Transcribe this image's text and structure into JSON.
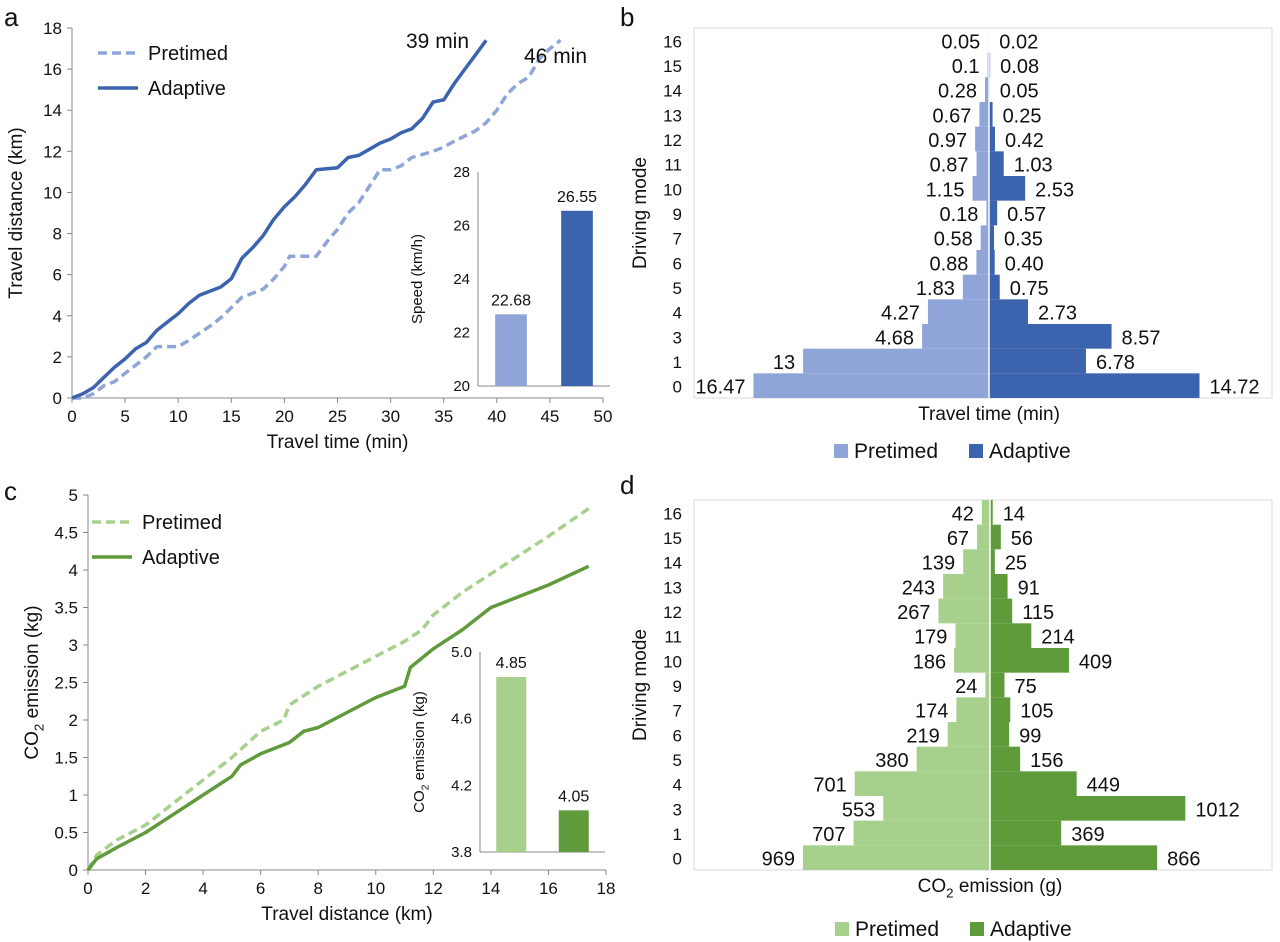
{
  "panel_letters": {
    "a": "a",
    "b": "b",
    "c": "c",
    "d": "d"
  },
  "colors": {
    "pretimed_blue": "#8FA5D8",
    "adaptive_blue": "#3B63AE",
    "pretimed_green": "#A8D08D",
    "adaptive_green": "#5F9B3A",
    "axis": "#888888",
    "grid": "#d9d9d9"
  },
  "chart_data": [
    {
      "id": "a",
      "type": "line",
      "xlabel": "Travel time (min)",
      "ylabel": "Travel distance (km)",
      "xlim": [
        0,
        50
      ],
      "ylim": [
        0,
        18
      ],
      "xticks": [
        0,
        5,
        10,
        15,
        20,
        25,
        30,
        35,
        40,
        45,
        50
      ],
      "yticks": [
        0,
        2,
        4,
        6,
        8,
        10,
        12,
        14,
        16,
        18
      ],
      "legend": [
        "Pretimed",
        "Adaptive"
      ],
      "legend_position": "top-left",
      "series": [
        {
          "name": "Pretimed",
          "style": "dashed",
          "points": [
            [
              0,
              0
            ],
            [
              1,
              0
            ],
            [
              2,
              0.2
            ],
            [
              3,
              0.6
            ],
            [
              4,
              0.8
            ],
            [
              5,
              1.2
            ],
            [
              6,
              1.6
            ],
            [
              7,
              2.0
            ],
            [
              8,
              2.5
            ],
            [
              10,
              2.5
            ],
            [
              11,
              2.8
            ],
            [
              13,
              3.5
            ],
            [
              14,
              3.9
            ],
            [
              15,
              4.4
            ],
            [
              16,
              4.9
            ],
            [
              17,
              5.1
            ],
            [
              18,
              5.3
            ],
            [
              19,
              5.8
            ],
            [
              20,
              6.4
            ],
            [
              20.5,
              6.9
            ],
            [
              23,
              6.9
            ],
            [
              24,
              7.6
            ],
            [
              25,
              8.2
            ],
            [
              26,
              9.0
            ],
            [
              27,
              9.5
            ],
            [
              28,
              10.3
            ],
            [
              29,
              11.1
            ],
            [
              30,
              11.1
            ],
            [
              31,
              11.3
            ],
            [
              32,
              11.7
            ],
            [
              34,
              12.0
            ],
            [
              35,
              12.2
            ],
            [
              36,
              12.5
            ],
            [
              38,
              13.0
            ],
            [
              39,
              13.4
            ],
            [
              40,
              14.0
            ],
            [
              41,
              14.8
            ],
            [
              42,
              15.3
            ],
            [
              43,
              15.6
            ],
            [
              44,
              16.5
            ],
            [
              45,
              17.0
            ],
            [
              46,
              17.4
            ]
          ]
        },
        {
          "name": "Adaptive",
          "style": "solid",
          "points": [
            [
              0,
              0
            ],
            [
              1,
              0.2
            ],
            [
              2,
              0.5
            ],
            [
              3,
              1.0
            ],
            [
              4,
              1.5
            ],
            [
              5,
              1.9
            ],
            [
              6,
              2.4
            ],
            [
              7,
              2.7
            ],
            [
              8,
              3.3
            ],
            [
              9,
              3.7
            ],
            [
              10,
              4.1
            ],
            [
              11,
              4.6
            ],
            [
              12,
              5.0
            ],
            [
              13,
              5.2
            ],
            [
              14,
              5.4
            ],
            [
              15,
              5.8
            ],
            [
              16,
              6.8
            ],
            [
              17,
              7.3
            ],
            [
              18,
              7.9
            ],
            [
              19,
              8.7
            ],
            [
              20,
              9.3
            ],
            [
              21,
              9.8
            ],
            [
              22,
              10.4
            ],
            [
              23,
              11.1
            ],
            [
              25,
              11.2
            ],
            [
              26,
              11.7
            ],
            [
              27,
              11.8
            ],
            [
              28,
              12.1
            ],
            [
              29,
              12.4
            ],
            [
              30,
              12.6
            ],
            [
              31,
              12.9
            ],
            [
              32,
              13.1
            ],
            [
              33,
              13.6
            ],
            [
              34,
              14.4
            ],
            [
              35,
              14.5
            ],
            [
              36,
              15.3
            ],
            [
              37,
              16.0
            ],
            [
              38,
              16.7
            ],
            [
              39,
              17.4
            ]
          ]
        }
      ],
      "annotations": [
        "39 min",
        "46 min"
      ],
      "inset": {
        "type": "bar",
        "ylabel": "Speed (km/h)",
        "ylim": [
          20,
          28
        ],
        "yticks": [
          20,
          22,
          24,
          26,
          28
        ],
        "categories": [
          "Pretimed",
          "Adaptive"
        ],
        "values": [
          22.68,
          26.55
        ],
        "labels": [
          "22.68",
          "26.55"
        ]
      }
    },
    {
      "id": "b",
      "type": "bar",
      "orientation": "horizontal-diverging",
      "xlabel": "Travel time (min)",
      "ylabel": "Driving mode",
      "legend": [
        "Pretimed",
        "Adaptive"
      ],
      "legend_position": "bottom",
      "categories": [
        "16",
        "15",
        "14",
        "13",
        "12",
        "11",
        "10",
        "9",
        "7",
        "6",
        "5",
        "4",
        "3",
        "1",
        "0"
      ],
      "series": [
        {
          "name": "Pretimed",
          "values": [
            0.05,
            0.1,
            0.28,
            0.67,
            0.97,
            0.87,
            1.15,
            0.18,
            0.58,
            0.88,
            1.83,
            4.27,
            4.68,
            13,
            16.47
          ],
          "labels": [
            "0.05",
            "0.1",
            "0.28",
            "0.67",
            "0.97",
            "0.87",
            "1.15",
            "0.18",
            "0.58",
            "0.88",
            "1.83",
            "4.27",
            "4.68",
            "13",
            "16.47"
          ]
        },
        {
          "name": "Adaptive",
          "values": [
            0.02,
            0.08,
            0.05,
            0.25,
            0.42,
            1.03,
            2.53,
            0.57,
            0.35,
            0.4,
            0.75,
            2.73,
            8.57,
            6.78,
            14.72
          ],
          "labels": [
            "0.02",
            "0.08",
            "0.05",
            "0.25",
            "0.42",
            "1.03",
            "2.53",
            "0.57",
            "0.35",
            "0.40",
            "0.75",
            "2.73",
            "8.57",
            "6.78",
            "14.72"
          ]
        }
      ]
    },
    {
      "id": "c",
      "type": "line",
      "xlabel": "Travel distance (km)",
      "ylabel": "CO",
      "ylabel_sub": "2",
      "ylabel_suffix": " emission (kg)",
      "xlim": [
        0,
        18
      ],
      "ylim": [
        0,
        5
      ],
      "xticks": [
        0,
        2,
        4,
        6,
        8,
        10,
        12,
        14,
        16,
        18
      ],
      "yticks": [
        "0",
        "0.5",
        "1",
        "1.5",
        "2",
        "2.5",
        "3",
        "3.5",
        "4",
        "4.5",
        "5"
      ],
      "legend": [
        "Pretimed",
        "Adaptive"
      ],
      "legend_position": "top-left",
      "series": [
        {
          "name": "Pretimed",
          "style": "dashed",
          "points": [
            [
              0,
              0
            ],
            [
              0.3,
              0.2
            ],
            [
              1,
              0.4
            ],
            [
              2,
              0.6
            ],
            [
              3,
              0.9
            ],
            [
              4,
              1.2
            ],
            [
              5,
              1.5
            ],
            [
              6,
              1.85
            ],
            [
              6.8,
              2.0
            ],
            [
              7.0,
              2.2
            ],
            [
              8,
              2.45
            ],
            [
              9,
              2.65
            ],
            [
              10,
              2.85
            ],
            [
              11,
              3.05
            ],
            [
              11.6,
              3.2
            ],
            [
              12,
              3.4
            ],
            [
              13,
              3.7
            ],
            [
              14,
              3.95
            ],
            [
              15,
              4.2
            ],
            [
              16,
              4.45
            ],
            [
              17.4,
              4.82
            ]
          ]
        },
        {
          "name": "Adaptive",
          "style": "solid",
          "points": [
            [
              0,
              0
            ],
            [
              0.3,
              0.15
            ],
            [
              1,
              0.3
            ],
            [
              2,
              0.5
            ],
            [
              3,
              0.75
            ],
            [
              4,
              1.0
            ],
            [
              5,
              1.25
            ],
            [
              5.3,
              1.4
            ],
            [
              6,
              1.55
            ],
            [
              7,
              1.7
            ],
            [
              7.5,
              1.85
            ],
            [
              8,
              1.9
            ],
            [
              9,
              2.1
            ],
            [
              10,
              2.3
            ],
            [
              11,
              2.45
            ],
            [
              11.2,
              2.7
            ],
            [
              12,
              2.95
            ],
            [
              13,
              3.2
            ],
            [
              14,
              3.5
            ],
            [
              15,
              3.65
            ],
            [
              16,
              3.8
            ],
            [
              17.4,
              4.05
            ]
          ]
        }
      ],
      "inset": {
        "type": "bar",
        "ylabel": "CO",
        "ylabel_sub": "2",
        "ylabel_suffix": " emission (kg)",
        "ylim": [
          3.8,
          5.0
        ],
        "yticks": [
          "3.8",
          "4.2",
          "4.6",
          "5.0"
        ],
        "categories": [
          "Pretimed",
          "Adaptive"
        ],
        "values": [
          4.85,
          4.05
        ],
        "labels": [
          "4.85",
          "4.05"
        ]
      }
    },
    {
      "id": "d",
      "type": "bar",
      "orientation": "horizontal-diverging",
      "xlabel": "CO",
      "xlabel_sub": "2",
      "xlabel_suffix": " emission (g)",
      "ylabel": "Driving mode",
      "legend": [
        "Pretimed",
        "Adaptive"
      ],
      "legend_position": "bottom",
      "categories": [
        "16",
        "15",
        "14",
        "13",
        "12",
        "11",
        "10",
        "9",
        "7",
        "6",
        "5",
        "4",
        "3",
        "1",
        "0"
      ],
      "series": [
        {
          "name": "Pretimed",
          "values": [
            42,
            67,
            139,
            243,
            267,
            179,
            186,
            24,
            174,
            219,
            380,
            701,
            553,
            707,
            969
          ],
          "labels": [
            "42",
            "67",
            "139",
            "243",
            "267",
            "179",
            "186",
            "24",
            "174",
            "219",
            "380",
            "701",
            "553",
            "707",
            "969"
          ]
        },
        {
          "name": "Adaptive",
          "values": [
            14,
            56,
            25,
            91,
            115,
            214,
            409,
            75,
            105,
            99,
            156,
            449,
            1012,
            369,
            866
          ],
          "labels": [
            "14",
            "56",
            "25",
            "91",
            "115",
            "214",
            "409",
            "75",
            "105",
            "99",
            "156",
            "449",
            "1012",
            "369",
            "866"
          ]
        }
      ]
    }
  ]
}
